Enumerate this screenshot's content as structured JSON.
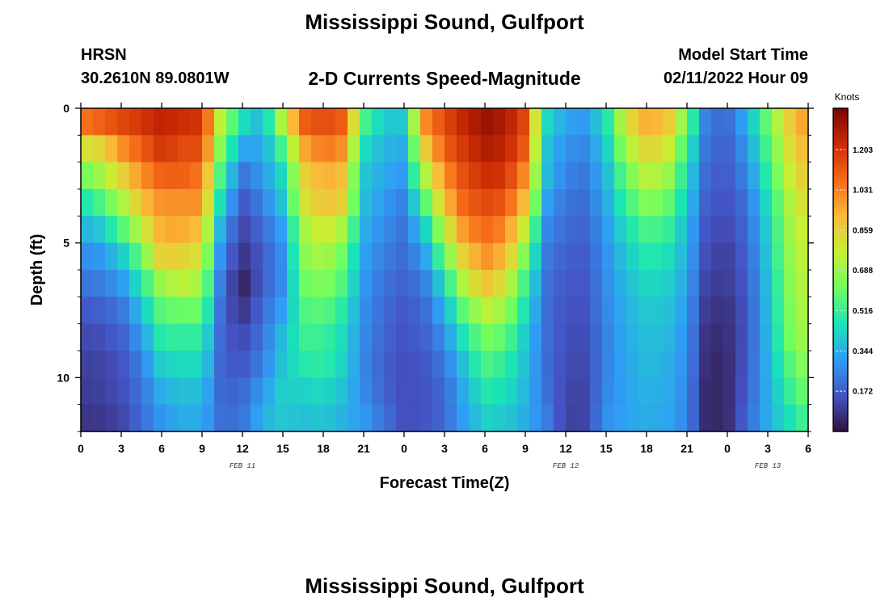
{
  "header": {
    "main_title": "Mississippi Sound, Gulfport",
    "station_id": "HRSN",
    "coordinates": "30.2610N  89.0801W",
    "plot_title": "2-D Currents Speed-Magnitude",
    "model_start_label": "Model Start Time",
    "model_start_time": "02/11/2022 Hour 09"
  },
  "footer": {
    "main_title": "Mississippi Sound, Gulfport"
  },
  "colors": {
    "colormap": [
      "#30123b",
      "#4454c4",
      "#2f9df5",
      "#1ae4b6",
      "#71fe5f",
      "#c8ef34",
      "#fabb39",
      "#f66b18",
      "#cb2a04",
      "#7a0403"
    ]
  },
  "chart_data": {
    "type": "heatmap",
    "xlabel": "Forecast Time(Z)",
    "ylabel": "Depth (ft)",
    "x_range_hours": [
      0,
      54
    ],
    "y_range_ft": [
      0,
      12
    ],
    "x_ticks": [
      {
        "hour": 0,
        "label": "0"
      },
      {
        "hour": 3,
        "label": "3"
      },
      {
        "hour": 6,
        "label": "6"
      },
      {
        "hour": 9,
        "label": "9"
      },
      {
        "hour": 12,
        "label": "12"
      },
      {
        "hour": 15,
        "label": "15"
      },
      {
        "hour": 18,
        "label": "18"
      },
      {
        "hour": 21,
        "label": "21"
      },
      {
        "hour": 24,
        "label": "0"
      },
      {
        "hour": 27,
        "label": "3"
      },
      {
        "hour": 30,
        "label": "6"
      },
      {
        "hour": 33,
        "label": "9"
      },
      {
        "hour": 36,
        "label": "12"
      },
      {
        "hour": 39,
        "label": "15"
      },
      {
        "hour": 42,
        "label": "18"
      },
      {
        "hour": 45,
        "label": "21"
      },
      {
        "hour": 48,
        "label": "0"
      },
      {
        "hour": 51,
        "label": "3"
      },
      {
        "hour": 54,
        "label": "6"
      }
    ],
    "date_labels": [
      {
        "hour": 12,
        "label": "FEB 11"
      },
      {
        "hour": 36,
        "label": "FEB 12"
      },
      {
        "hour": 51,
        "label": "FEB 13"
      }
    ],
    "y_ticks": [
      {
        "depth": 0,
        "label": "0"
      },
      {
        "depth": 5,
        "label": "5"
      },
      {
        "depth": 10,
        "label": "10"
      }
    ],
    "colorbar": {
      "title": "Knots",
      "min": 0.0,
      "max": 1.38,
      "ticks": [
        "0.172",
        "0.344",
        "0.516",
        "0.688",
        "0.859",
        "1.031",
        "1.203"
      ]
    },
    "depth_bins": [
      0.5,
      1.5,
      2.5,
      3.5,
      4.5,
      5.5,
      6.5,
      7.5,
      8.5,
      9.5,
      10.5,
      11.5
    ],
    "speed_profiles": [
      {
        "hour": 0.0,
        "knots": [
          1.05,
          0.8,
          0.6,
          0.45,
          0.35,
          0.27,
          0.22,
          0.16,
          0.13,
          0.11,
          0.1,
          0.08
        ]
      },
      {
        "hour": 1.5,
        "knots": [
          1.1,
          0.85,
          0.7,
          0.55,
          0.4,
          0.3,
          0.24,
          0.18,
          0.14,
          0.12,
          0.11,
          0.09
        ]
      },
      {
        "hour": 3.0,
        "knots": [
          1.15,
          1.0,
          0.85,
          0.7,
          0.55,
          0.4,
          0.3,
          0.22,
          0.18,
          0.15,
          0.14,
          0.12
        ]
      },
      {
        "hour": 4.5,
        "knots": [
          1.2,
          1.1,
          1.0,
          0.9,
          0.75,
          0.6,
          0.48,
          0.38,
          0.3,
          0.25,
          0.22,
          0.2
        ]
      },
      {
        "hour": 6.0,
        "knots": [
          1.25,
          1.2,
          1.1,
          1.0,
          0.95,
          0.88,
          0.7,
          0.58,
          0.5,
          0.42,
          0.35,
          0.3
        ]
      },
      {
        "hour": 7.5,
        "knots": [
          1.22,
          1.15,
          1.1,
          1.0,
          0.95,
          0.85,
          0.75,
          0.6,
          0.5,
          0.44,
          0.38,
          0.34
        ]
      },
      {
        "hour": 9.0,
        "knots": [
          1.2,
          1.15,
          1.05,
          1.0,
          0.9,
          0.8,
          0.7,
          0.6,
          0.5,
          0.44,
          0.38,
          0.34
        ]
      },
      {
        "hour": 10.5,
        "knots": [
          0.7,
          0.6,
          0.5,
          0.4,
          0.3,
          0.24,
          0.2,
          0.18,
          0.17,
          0.17,
          0.18,
          0.2
        ]
      },
      {
        "hour": 12.0,
        "knots": [
          0.45,
          0.32,
          0.22,
          0.16,
          0.12,
          0.08,
          0.04,
          0.08,
          0.13,
          0.16,
          0.2,
          0.22
        ]
      },
      {
        "hour": 13.5,
        "knots": [
          0.35,
          0.33,
          0.3,
          0.25,
          0.2,
          0.17,
          0.17,
          0.2,
          0.22,
          0.25,
          0.3,
          0.35
        ]
      },
      {
        "hour": 15.0,
        "knots": [
          0.75,
          0.55,
          0.45,
          0.4,
          0.32,
          0.28,
          0.28,
          0.32,
          0.38,
          0.4,
          0.42,
          0.4
        ]
      },
      {
        "hour": 16.5,
        "knots": [
          1.1,
          0.95,
          0.85,
          0.8,
          0.7,
          0.65,
          0.6,
          0.55,
          0.52,
          0.48,
          0.42,
          0.38
        ]
      },
      {
        "hour": 18.0,
        "knots": [
          1.15,
          1.05,
          0.95,
          0.9,
          0.8,
          0.72,
          0.65,
          0.58,
          0.52,
          0.5,
          0.44,
          0.4
        ]
      },
      {
        "hour": 19.5,
        "knots": [
          1.1,
          1.0,
          0.9,
          0.85,
          0.7,
          0.6,
          0.55,
          0.48,
          0.44,
          0.42,
          0.38,
          0.35
        ]
      },
      {
        "hour": 21.0,
        "knots": [
          0.55,
          0.45,
          0.4,
          0.38,
          0.35,
          0.32,
          0.3,
          0.28,
          0.27,
          0.26,
          0.27,
          0.3
        ]
      },
      {
        "hour": 22.5,
        "knots": [
          0.4,
          0.36,
          0.33,
          0.3,
          0.27,
          0.24,
          0.22,
          0.2,
          0.19,
          0.18,
          0.19,
          0.22
        ]
      },
      {
        "hour": 24.0,
        "knots": [
          0.4,
          0.34,
          0.3,
          0.25,
          0.22,
          0.2,
          0.18,
          0.16,
          0.15,
          0.14,
          0.14,
          0.14
        ]
      },
      {
        "hour": 25.5,
        "knots": [
          1.0,
          0.85,
          0.7,
          0.55,
          0.4,
          0.3,
          0.24,
          0.2,
          0.18,
          0.16,
          0.15,
          0.15
        ]
      },
      {
        "hour": 27.0,
        "knots": [
          1.15,
          1.1,
          1.0,
          0.9,
          0.75,
          0.6,
          0.45,
          0.35,
          0.28,
          0.23,
          0.2,
          0.2
        ]
      },
      {
        "hour": 28.5,
        "knots": [
          1.25,
          1.2,
          1.15,
          1.1,
          1.0,
          0.88,
          0.75,
          0.6,
          0.48,
          0.4,
          0.35,
          0.32
        ]
      },
      {
        "hour": 30.0,
        "knots": [
          1.32,
          1.28,
          1.22,
          1.15,
          1.08,
          1.0,
          0.9,
          0.75,
          0.62,
          0.55,
          0.48,
          0.42
        ]
      },
      {
        "hour": 31.5,
        "knots": [
          1.28,
          1.25,
          1.2,
          1.12,
          1.02,
          0.92,
          0.8,
          0.68,
          0.58,
          0.5,
          0.45,
          0.4
        ]
      },
      {
        "hour": 33.0,
        "knots": [
          1.15,
          1.1,
          1.0,
          0.9,
          0.75,
          0.62,
          0.52,
          0.45,
          0.4,
          0.38,
          0.36,
          0.34
        ]
      },
      {
        "hour": 34.5,
        "knots": [
          0.45,
          0.4,
          0.38,
          0.32,
          0.27,
          0.24,
          0.22,
          0.21,
          0.21,
          0.21,
          0.22,
          0.25
        ]
      },
      {
        "hour": 36.0,
        "knots": [
          0.32,
          0.28,
          0.25,
          0.22,
          0.2,
          0.18,
          0.16,
          0.15,
          0.14,
          0.13,
          0.12,
          0.11
        ]
      },
      {
        "hour": 37.5,
        "knots": [
          0.3,
          0.26,
          0.23,
          0.21,
          0.19,
          0.17,
          0.16,
          0.15,
          0.14,
          0.13,
          0.12,
          0.12
        ]
      },
      {
        "hour": 39.0,
        "knots": [
          0.45,
          0.4,
          0.36,
          0.33,
          0.3,
          0.28,
          0.27,
          0.26,
          0.25,
          0.25,
          0.26,
          0.28
        ]
      },
      {
        "hour": 40.5,
        "knots": [
          0.8,
          0.7,
          0.6,
          0.52,
          0.45,
          0.4,
          0.37,
          0.35,
          0.34,
          0.33,
          0.32,
          0.32
        ]
      },
      {
        "hour": 42.0,
        "knots": [
          0.95,
          0.85,
          0.75,
          0.65,
          0.55,
          0.48,
          0.44,
          0.4,
          0.38,
          0.37,
          0.35,
          0.34
        ]
      },
      {
        "hour": 43.5,
        "knots": [
          0.9,
          0.8,
          0.7,
          0.6,
          0.52,
          0.46,
          0.42,
          0.39,
          0.37,
          0.35,
          0.34,
          0.33
        ]
      },
      {
        "hour": 45.0,
        "knots": [
          0.6,
          0.5,
          0.44,
          0.4,
          0.36,
          0.34,
          0.32,
          0.3,
          0.28,
          0.27,
          0.26,
          0.26
        ]
      },
      {
        "hour": 46.5,
        "knots": [
          0.22,
          0.2,
          0.18,
          0.16,
          0.14,
          0.12,
          0.1,
          0.08,
          0.06,
          0.05,
          0.04,
          0.04
        ]
      },
      {
        "hour": 48.0,
        "knots": [
          0.2,
          0.18,
          0.17,
          0.15,
          0.13,
          0.11,
          0.1,
          0.08,
          0.07,
          0.06,
          0.06,
          0.06
        ]
      },
      {
        "hour": 49.5,
        "knots": [
          0.35,
          0.3,
          0.26,
          0.22,
          0.2,
          0.18,
          0.17,
          0.16,
          0.16,
          0.17,
          0.18,
          0.2
        ]
      },
      {
        "hour": 51.0,
        "knots": [
          0.6,
          0.55,
          0.5,
          0.45,
          0.42,
          0.4,
          0.38,
          0.37,
          0.36,
          0.35,
          0.34,
          0.34
        ]
      },
      {
        "hour": 52.5,
        "knots": [
          0.85,
          0.8,
          0.75,
          0.7,
          0.68,
          0.66,
          0.64,
          0.62,
          0.6,
          0.55,
          0.5,
          0.45
        ]
      },
      {
        "hour": 54.0,
        "knots": [
          1.0,
          0.95,
          0.9,
          0.85,
          0.8,
          0.78,
          0.76,
          0.74,
          0.72,
          0.68,
          0.62,
          0.55
        ]
      }
    ]
  }
}
